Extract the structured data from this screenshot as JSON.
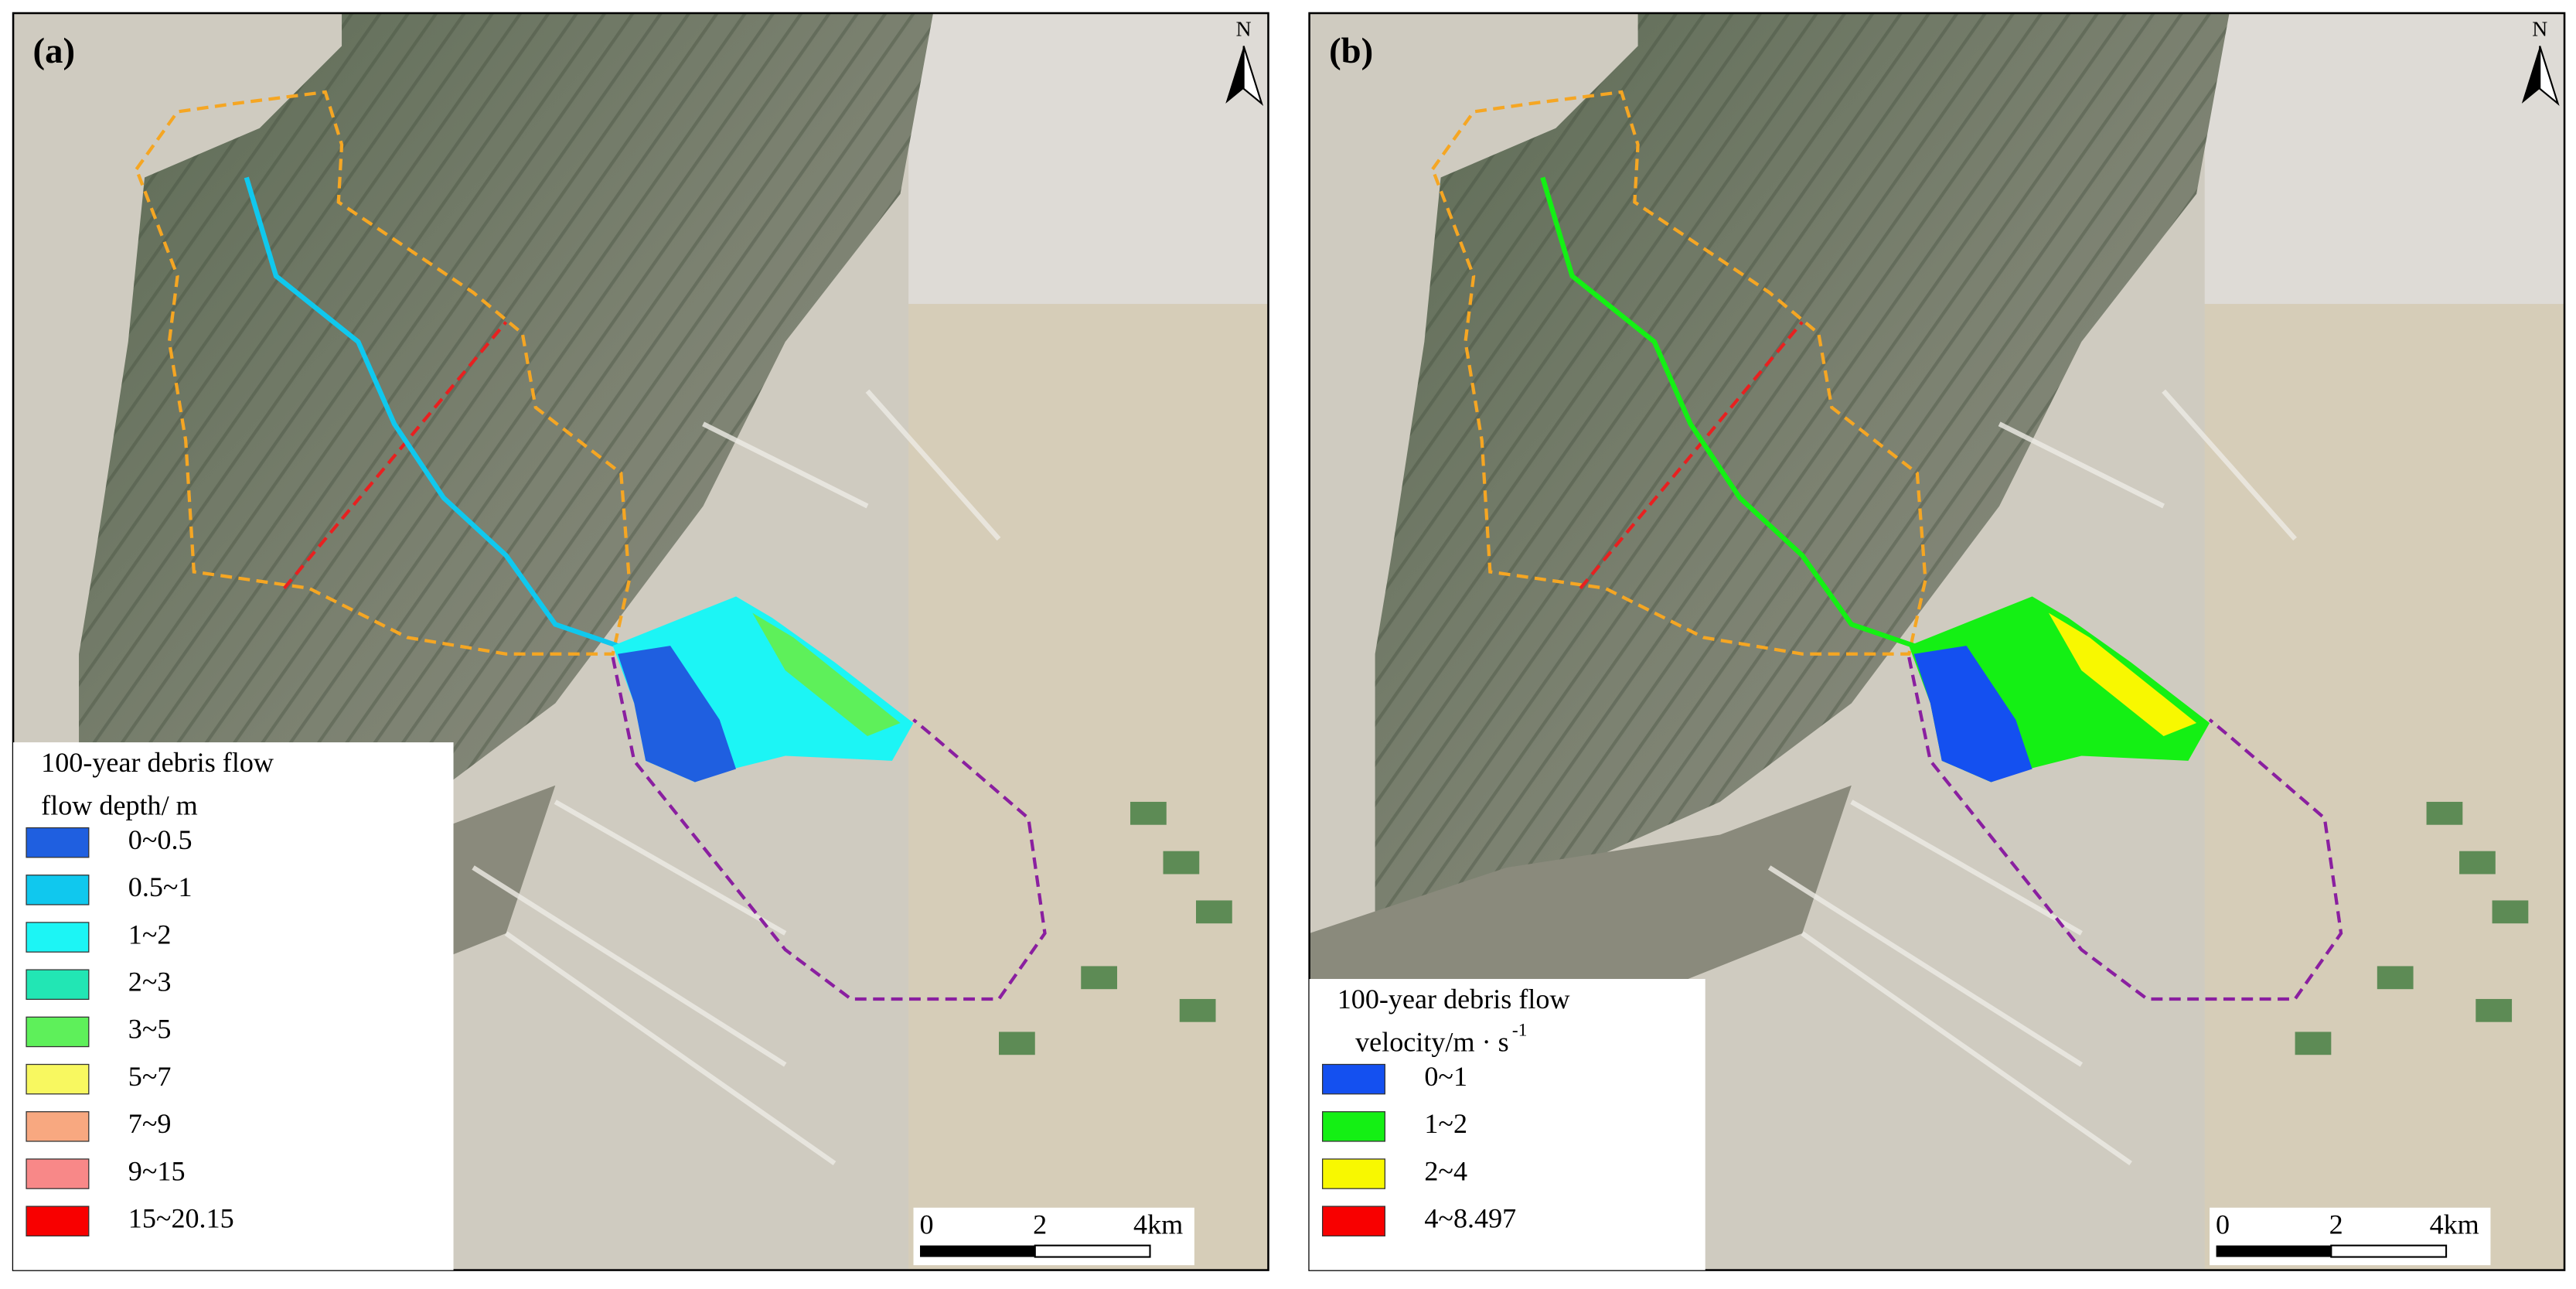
{
  "panels": [
    {
      "label": "(a)",
      "north": "N",
      "legend": {
        "title": [
          "100-year debris flow",
          "flow depth/ m"
        ],
        "items": [
          {
            "label": "0~0.5",
            "color": "#1f5fe0"
          },
          {
            "label": "0.5~1",
            "color": "#10c8ee"
          },
          {
            "label": "1~2",
            "color": "#1cf5f5"
          },
          {
            "label": "2~3",
            "color": "#22e6b4"
          },
          {
            "label": "3~5",
            "color": "#5ef05a"
          },
          {
            "label": "5~7",
            "color": "#f8f860"
          },
          {
            "label": "7~9",
            "color": "#f8a880"
          },
          {
            "label": "9~15",
            "color": "#f88888"
          },
          {
            "label": "15~20.15",
            "color": "#f80000"
          }
        ]
      },
      "scale_bar": [
        "0",
        "2",
        "4km"
      ]
    },
    {
      "label": "(b)",
      "north": "N",
      "legend": {
        "title": [
          "100-year debris flow",
          "velocity/m · s"
        ],
        "title_sup": "-1",
        "items": [
          {
            "label": "0~1",
            "color": "#1450f0"
          },
          {
            "label": "1~2",
            "color": "#14f014"
          },
          {
            "label": "2~4",
            "color": "#f8f800"
          },
          {
            "label": "4~8.497",
            "color": "#f80000"
          }
        ]
      },
      "scale_bar": [
        "0",
        "2",
        "4km"
      ]
    }
  ]
}
